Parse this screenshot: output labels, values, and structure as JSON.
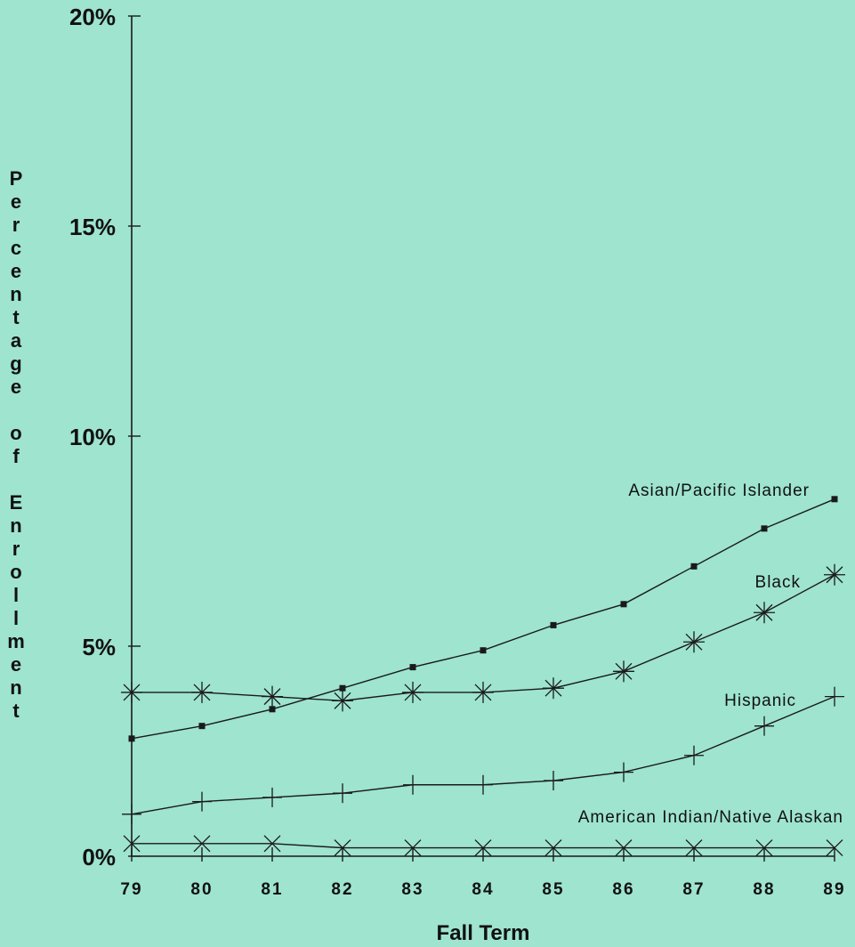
{
  "chart_data": {
    "type": "line",
    "title": "",
    "xlabel": "Fall Term",
    "ylabel": "Percentage of Enrollment",
    "x": [
      "79",
      "80",
      "81",
      "82",
      "83",
      "84",
      "85",
      "86",
      "87",
      "88",
      "89"
    ],
    "ylim": [
      0,
      20
    ],
    "y_ticks": [
      0,
      5,
      10,
      15,
      20
    ],
    "y_tick_labels": [
      "0%",
      "5%",
      "10%",
      "15%",
      "20%"
    ],
    "grid": false,
    "legend": "direct labels on lines",
    "series": [
      {
        "name": "Asian/Pacific Islander",
        "marker": "square",
        "values": [
          2.8,
          3.1,
          3.5,
          4.0,
          4.5,
          4.9,
          5.5,
          6.0,
          6.9,
          7.8,
          8.5
        ]
      },
      {
        "name": "Black",
        "marker": "asterisk",
        "values": [
          3.9,
          3.9,
          3.8,
          3.7,
          3.9,
          3.9,
          4.0,
          4.4,
          5.1,
          5.8,
          6.7
        ]
      },
      {
        "name": "Hispanic",
        "marker": "plus",
        "values": [
          1.0,
          1.3,
          1.4,
          1.5,
          1.7,
          1.7,
          1.8,
          2.0,
          2.4,
          3.1,
          3.8
        ]
      },
      {
        "name": "American Indian/Native Alaskan",
        "marker": "x",
        "values": [
          0.3,
          0.3,
          0.3,
          0.2,
          0.2,
          0.2,
          0.2,
          0.2,
          0.2,
          0.2,
          0.2
        ]
      }
    ]
  }
}
